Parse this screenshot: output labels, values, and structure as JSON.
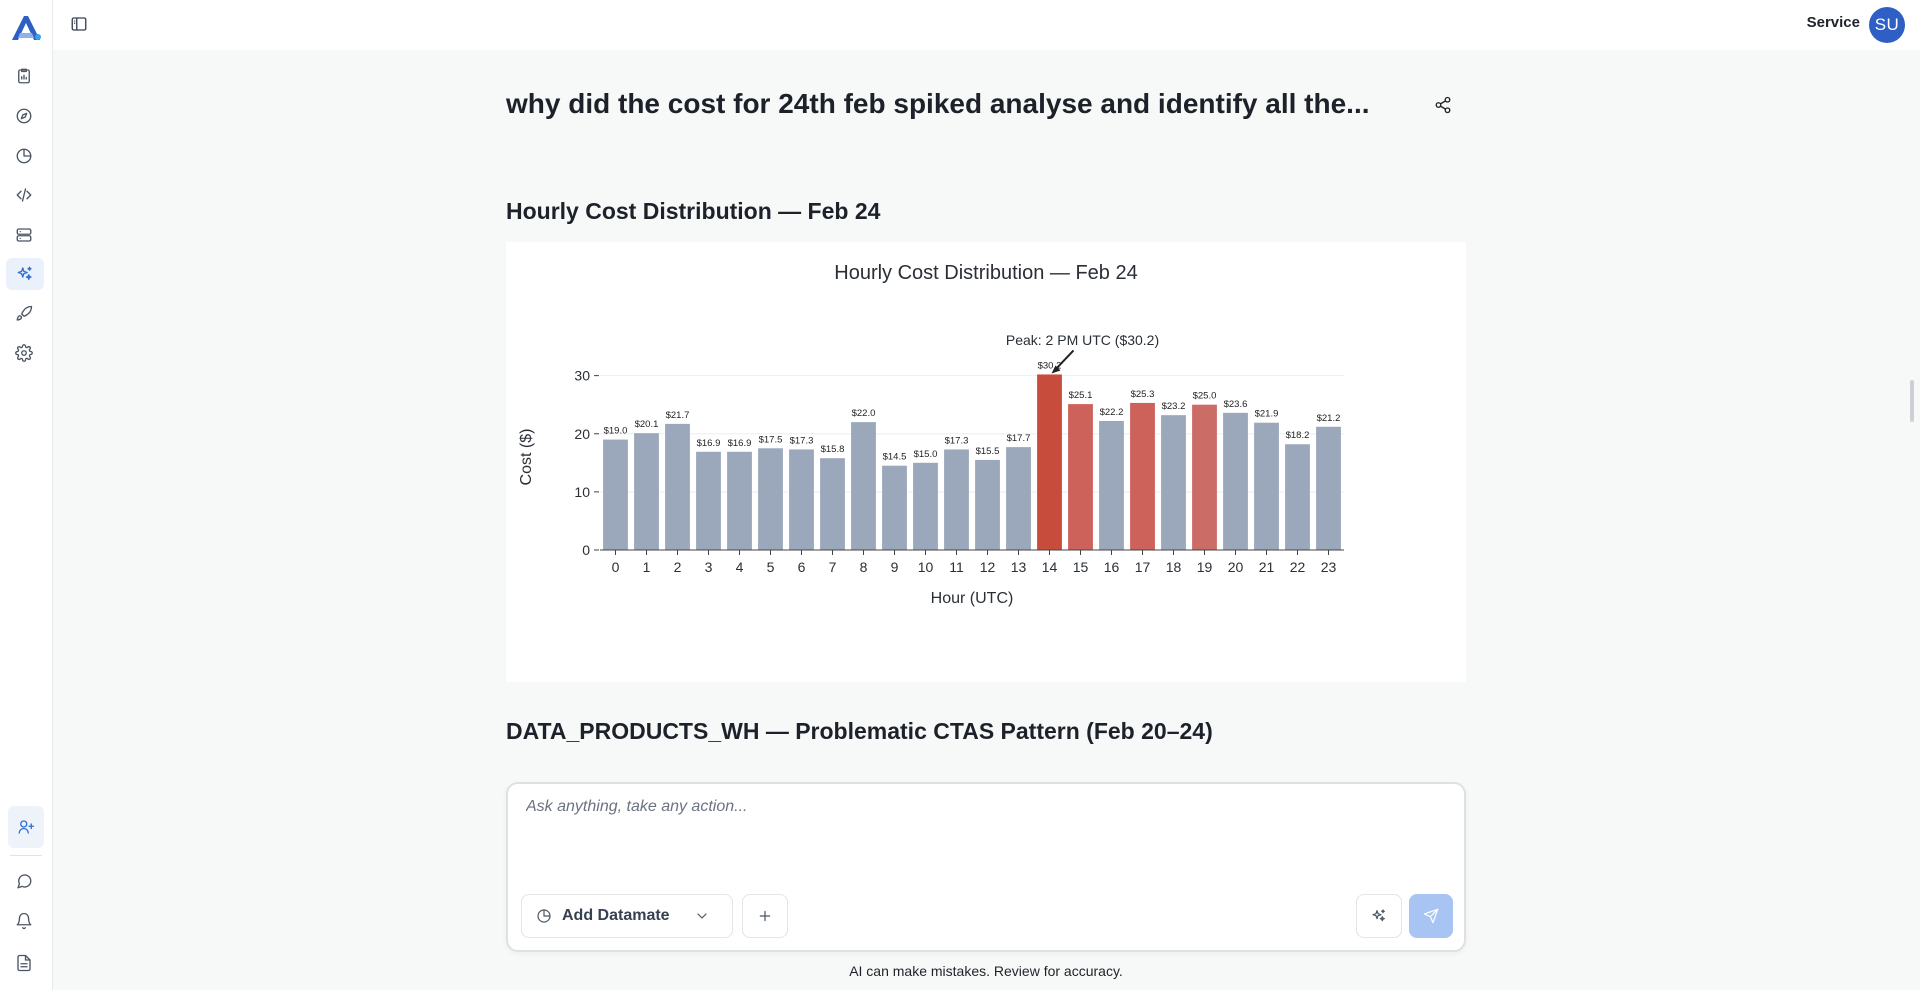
{
  "topbar": {
    "user_name": "Service",
    "avatar_initials": "SU"
  },
  "page": {
    "title": "why did the cost for 24th feb spiked analyse and identify all the..."
  },
  "sections": {
    "chart_heading": "Hourly Cost Distribution — Feb 24",
    "next_heading": "DATA_PRODUCTS_WH — Problematic CTAS Pattern (Feb 20–24)"
  },
  "chart_data": {
    "type": "bar",
    "title": "Hourly Cost Distribution — Feb 24",
    "xlabel": "Hour (UTC)",
    "ylabel": "Cost ($)",
    "ylim": [
      0,
      32
    ],
    "yticks": [
      0,
      10,
      20,
      30
    ],
    "categories": [
      "0",
      "1",
      "2",
      "3",
      "4",
      "5",
      "6",
      "7",
      "8",
      "9",
      "10",
      "11",
      "12",
      "13",
      "14",
      "15",
      "16",
      "17",
      "18",
      "19",
      "20",
      "21",
      "22",
      "23"
    ],
    "values": [
      19.0,
      20.1,
      21.7,
      16.9,
      16.9,
      17.5,
      17.3,
      15.8,
      22.0,
      14.5,
      15.0,
      17.3,
      15.5,
      17.7,
      30.2,
      25.1,
      22.2,
      25.3,
      23.2,
      25.0,
      23.6,
      21.9,
      18.2,
      21.2
    ],
    "data_labels": [
      "$19.0",
      "$20.1",
      "$21.7",
      "$16.9",
      "$16.9",
      "$17.5",
      "$17.3",
      "$15.8",
      "$22.0",
      "$14.5",
      "$15.0",
      "$17.3",
      "$15.5",
      "$17.7",
      "$30.2",
      "$25.1",
      "$22.2",
      "$25.3",
      "$23.2",
      "$25.0",
      "$23.6",
      "$21.9",
      "$18.2",
      "$21.2"
    ],
    "bar_colors": [
      "#9ba8bb",
      "#9ba8bb",
      "#9ba8bb",
      "#9ba8bb",
      "#9ba8bb",
      "#9ba8bb",
      "#9ba8bb",
      "#9ba8bb",
      "#9ba8bb",
      "#9ba8bb",
      "#9ba8bb",
      "#9ba8bb",
      "#9ba8bb",
      "#9ba8bb",
      "#c84c3c",
      "#cc625a",
      "#9ba8bb",
      "#cc625a",
      "#9ba8bb",
      "#cc6c66",
      "#9ba8bb",
      "#9ba8bb",
      "#9ba8bb",
      "#9ba8bb"
    ],
    "annotation": {
      "text": "Peak: 2 PM UTC ($30.2)",
      "category": "14"
    },
    "grid": true
  },
  "composer": {
    "placeholder": "Ask anything, take any action...",
    "add_datamate_label": "Add Datamate"
  },
  "footer": {
    "disclaimer": "AI can make mistakes. Review for accuracy."
  },
  "colors": {
    "accent": "#2e6fd9",
    "avatar": "#2f5fc4",
    "send": "#a7c4f2",
    "bar_default": "#9ba8bb",
    "bar_peak": "#c84c3c"
  }
}
